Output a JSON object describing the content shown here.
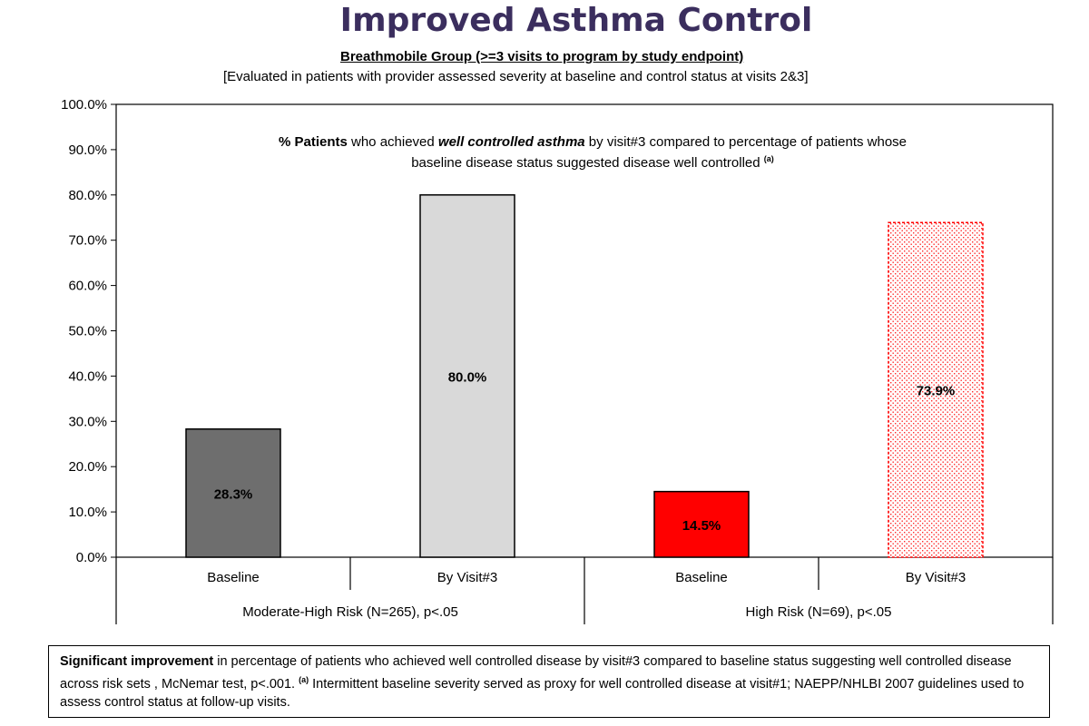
{
  "title": "Improved Asthma Control",
  "subtitle": "Breathmobile Group (>=3 visits to program by study endpoint)",
  "subtitle2": "[Evaluated in patients with provider assessed severity at baseline and control status at visits 2&3]",
  "annotation": {
    "line1_bold": "% Patients",
    "line1_text1": " who achieved ",
    "line1_bolditalic": "well controlled asthma",
    "line1_text2": " by visit#3 compared to percentage of patients whose",
    "line2": "baseline disease status suggested disease well controlled ",
    "line2_mark": "(a)"
  },
  "footnote": {
    "bold": "Significant improvement",
    "text1": " in percentage of patients who achieved well controlled disease by visit#3 compared to baseline status suggesting well controlled disease across risk sets , McNemar test, p<.001.  ",
    "mark": "(a)",
    "text2": " Intermittent baseline severity served as proxy for well controlled disease at visit#1; NAEPP/NHLBI 2007 guidelines used to assess control status at follow-up visits."
  },
  "chart_data": {
    "type": "bar",
    "ylim": [
      0,
      100
    ],
    "yticks": [
      "0.0%",
      "10.0%",
      "20.0%",
      "30.0%",
      "40.0%",
      "50.0%",
      "60.0%",
      "70.0%",
      "80.0%",
      "90.0%",
      "100.0%"
    ],
    "groups": [
      "Moderate-High Risk (N=265), p<.05",
      "High Risk (N=69), p<.05"
    ],
    "categories": [
      "Baseline",
      "By Visit#3",
      "Baseline",
      "By Visit#3"
    ],
    "values": [
      28.3,
      80.0,
      14.5,
      73.9
    ],
    "labels": [
      "28.3%",
      "80.0%",
      "14.5%",
      "73.9%"
    ],
    "colors": [
      "#6e6e6e",
      "#d9d9d9",
      "#ff0000",
      "#ffffff"
    ],
    "grid": false
  }
}
